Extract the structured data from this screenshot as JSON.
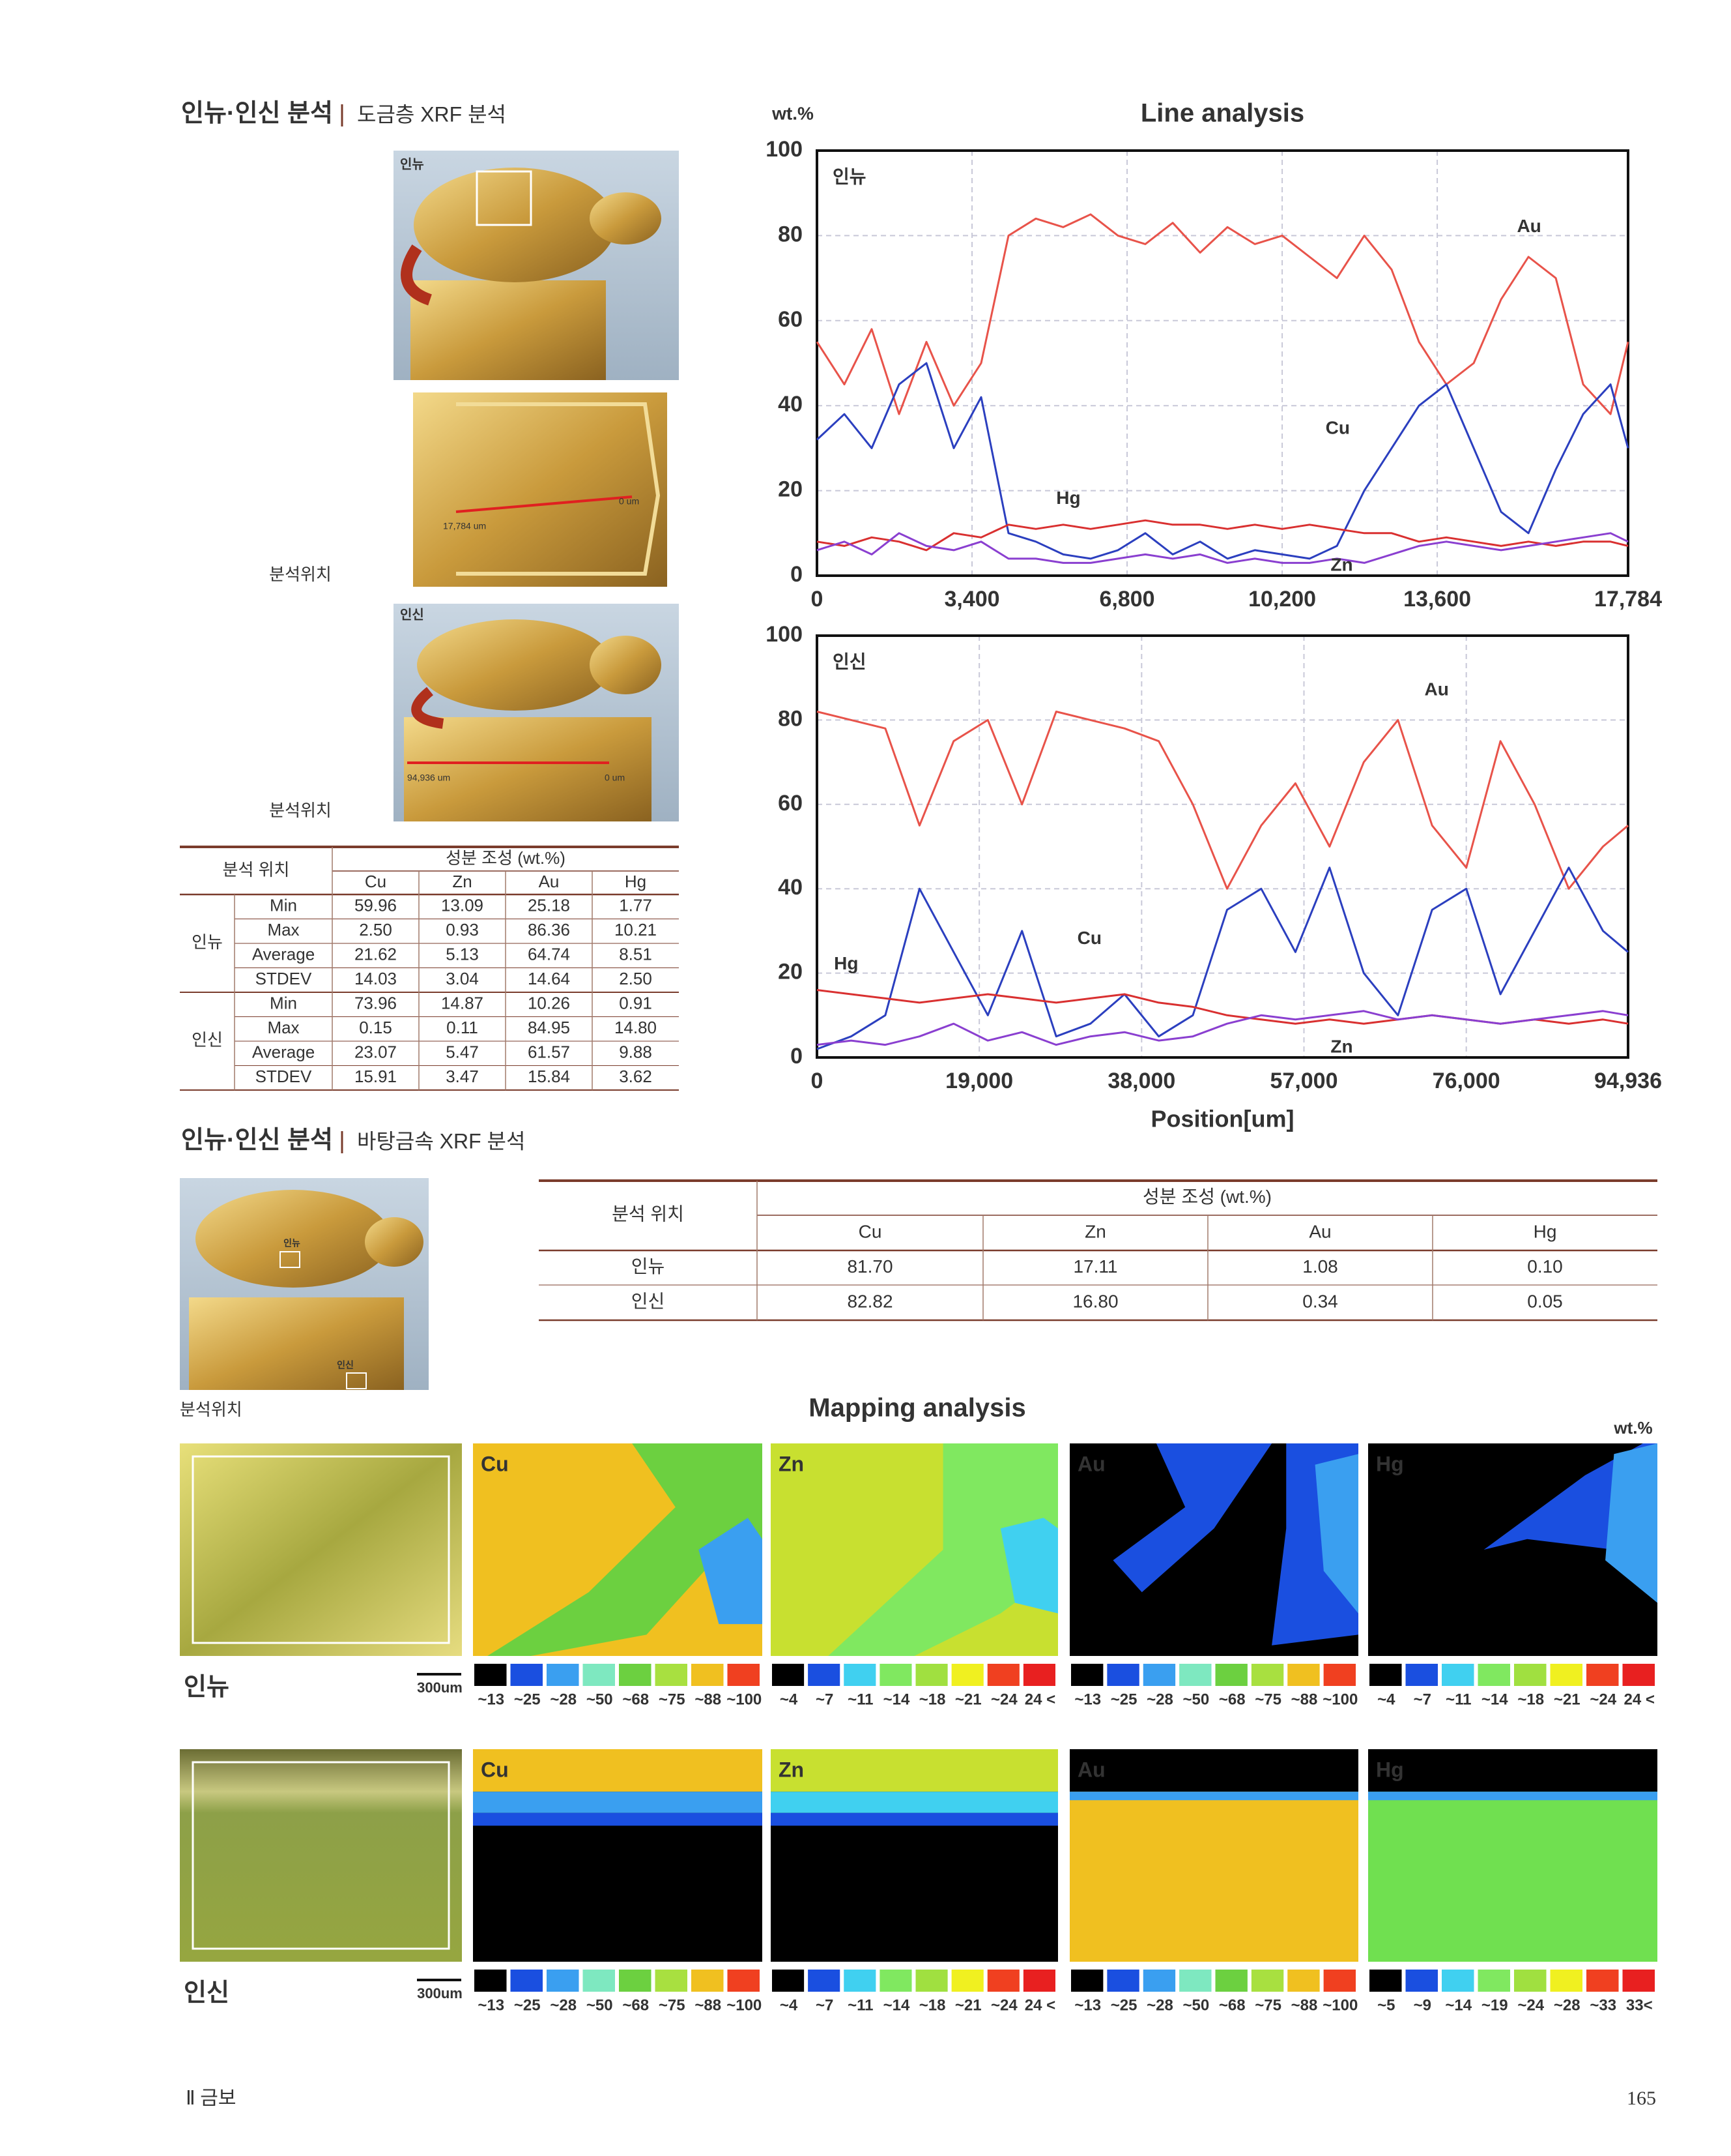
{
  "section1": {
    "title": "인뉴·인신 분석",
    "subtitle": "도금층 XRF 분석"
  },
  "photos": {
    "top": "인뉴",
    "top_detail_start": "17,784 um",
    "top_detail_end": "0 um",
    "bottom": "인신",
    "bottom_start": "94,936 um",
    "bottom_end": "0 um",
    "caption_1": "분석위치",
    "caption_2": "분석위치"
  },
  "table1": {
    "location_header": "분석 위치",
    "composition_header": "성분 조성 (wt.%)",
    "columns": [
      "Cu",
      "Zn",
      "Au",
      "Hg"
    ],
    "groups": [
      {
        "name": "인뉴",
        "rows": [
          [
            "Min",
            "59.96",
            "13.09",
            "25.18",
            "1.77"
          ],
          [
            "Max",
            "2.50",
            "0.93",
            "86.36",
            "10.21"
          ],
          [
            "Average",
            "21.62",
            "5.13",
            "64.74",
            "8.51"
          ],
          [
            "STDEV",
            "14.03",
            "3.04",
            "14.64",
            "2.50"
          ]
        ]
      },
      {
        "name": "인신",
        "rows": [
          [
            "Min",
            "73.96",
            "14.87",
            "10.26",
            "0.91"
          ],
          [
            "Max",
            "0.15",
            "0.11",
            "84.95",
            "14.80"
          ],
          [
            "Average",
            "23.07",
            "5.47",
            "61.57",
            "9.88"
          ],
          [
            "STDEV",
            "15.91",
            "3.47",
            "15.84",
            "3.62"
          ]
        ]
      }
    ]
  },
  "chart_data": [
    {
      "type": "line",
      "title": "Line analysis",
      "y_label": "wt.%",
      "panel_label": "인뉴",
      "x": [
        0,
        600,
        1200,
        1800,
        2400,
        3000,
        3600,
        4200,
        4800,
        5400,
        6000,
        6600,
        7200,
        7800,
        8400,
        9000,
        9600,
        10200,
        10800,
        11400,
        12000,
        12600,
        13200,
        13800,
        14400,
        15000,
        15600,
        16200,
        16800,
        17400,
        17784
      ],
      "xlim": [
        0,
        17784
      ],
      "xticks": [
        0,
        {
          "value": 3400,
          "label": "3,400"
        },
        {
          "value": 6800,
          "label": "6,800"
        },
        {
          "value": 10200,
          "label": "10,200"
        },
        {
          "value": 13600,
          "label": "13,600"
        },
        {
          "value": 17784,
          "label": "17,784"
        }
      ],
      "ylim": [
        0,
        100
      ],
      "yticks": [
        0,
        20,
        40,
        60,
        80,
        100
      ],
      "grid": true,
      "series": [
        {
          "name": "Au",
          "color": "#e8534a",
          "values": [
            55,
            45,
            58,
            38,
            55,
            40,
            50,
            80,
            84,
            82,
            85,
            80,
            78,
            83,
            76,
            82,
            78,
            80,
            75,
            70,
            80,
            72,
            55,
            45,
            50,
            65,
            75,
            70,
            45,
            38,
            55
          ]
        },
        {
          "name": "Cu",
          "color": "#2b3fbf",
          "values": [
            32,
            38,
            30,
            45,
            50,
            30,
            42,
            10,
            8,
            5,
            4,
            6,
            10,
            5,
            8,
            4,
            6,
            5,
            4,
            7,
            20,
            30,
            40,
            45,
            30,
            15,
            10,
            25,
            38,
            45,
            30
          ]
        },
        {
          "name": "Hg",
          "color": "#d93030",
          "values": [
            8,
            7,
            9,
            8,
            6,
            10,
            9,
            12,
            11,
            12,
            11,
            12,
            13,
            12,
            12,
            11,
            12,
            11,
            12,
            11,
            10,
            10,
            8,
            9,
            8,
            7,
            8,
            7,
            8,
            8,
            7
          ]
        },
        {
          "name": "Zn",
          "color": "#8a3fd0",
          "values": [
            6,
            8,
            5,
            10,
            7,
            6,
            8,
            4,
            4,
            3,
            3,
            4,
            5,
            4,
            5,
            3,
            4,
            3,
            3,
            4,
            3,
            5,
            7,
            8,
            7,
            6,
            7,
            8,
            9,
            10,
            8
          ]
        }
      ]
    },
    {
      "type": "line",
      "panel_label": "인신",
      "x_label": "Position[um]",
      "x": [
        0,
        4000,
        8000,
        12000,
        16000,
        20000,
        24000,
        28000,
        32000,
        36000,
        40000,
        44000,
        48000,
        52000,
        56000,
        60000,
        64000,
        68000,
        72000,
        76000,
        80000,
        84000,
        88000,
        92000,
        94936
      ],
      "xlim": [
        0,
        94936
      ],
      "xticks": [
        0,
        {
          "value": 19000,
          "label": "19,000"
        },
        {
          "value": 38000,
          "label": "38,000"
        },
        {
          "value": 57000,
          "label": "57,000"
        },
        {
          "value": 76000,
          "label": "76,000"
        },
        {
          "value": 94936,
          "label": "94,936"
        }
      ],
      "ylim": [
        0,
        100
      ],
      "yticks": [
        0,
        20,
        40,
        60,
        80,
        100
      ],
      "grid": true,
      "series": [
        {
          "name": "Au",
          "color": "#e8534a",
          "values": [
            82,
            80,
            78,
            55,
            75,
            80,
            60,
            82,
            80,
            78,
            75,
            60,
            40,
            55,
            65,
            50,
            70,
            80,
            55,
            45,
            75,
            60,
            40,
            50,
            55
          ]
        },
        {
          "name": "Cu",
          "color": "#2b3fbf",
          "values": [
            2,
            5,
            10,
            40,
            25,
            10,
            30,
            5,
            8,
            15,
            5,
            10,
            35,
            40,
            25,
            45,
            20,
            10,
            35,
            40,
            15,
            30,
            45,
            30,
            25
          ]
        },
        {
          "name": "Hg",
          "color": "#d93030",
          "values": [
            16,
            15,
            14,
            13,
            14,
            15,
            14,
            13,
            14,
            15,
            13,
            12,
            10,
            9,
            8,
            9,
            8,
            9,
            10,
            9,
            8,
            9,
            8,
            9,
            8
          ]
        },
        {
          "name": "Zn",
          "color": "#8a3fd0",
          "values": [
            3,
            4,
            3,
            5,
            8,
            4,
            6,
            3,
            5,
            6,
            4,
            5,
            8,
            10,
            9,
            10,
            11,
            9,
            10,
            9,
            8,
            9,
            10,
            11,
            10
          ]
        }
      ]
    }
  ],
  "section2": {
    "title": "인뉴·인신 분석",
    "subtitle": "바탕금속 XRF 분석",
    "photo_top": "인뉴",
    "photo_bottom": "인신",
    "caption": "분석위치"
  },
  "table2": {
    "location_header": "분석 위치",
    "composition_header": "성분 조성 (wt.%)",
    "columns": [
      "Cu",
      "Zn",
      "Au",
      "Hg"
    ],
    "rows": [
      [
        "인뉴",
        "81.70",
        "17.11",
        "1.08",
        "0.10"
      ],
      [
        "인신",
        "82.82",
        "16.80",
        "0.34",
        "0.05"
      ]
    ]
  },
  "mapping": {
    "title": "Mapping analysis",
    "unit": "wt.%",
    "rows": [
      {
        "name": "인뉴",
        "scale": "300um",
        "maps": [
          {
            "element": "Cu",
            "legend": [
              "~13",
              "~25",
              "~28",
              "~50",
              "~68",
              "~75",
              "~88",
              "~100"
            ]
          },
          {
            "element": "Zn",
            "legend": [
              "~4",
              "~7",
              "~11",
              "~14",
              "~18",
              "~21",
              "~24",
              "24 <"
            ]
          },
          {
            "element": "Au",
            "legend": [
              "~13",
              "~25",
              "~28",
              "~50",
              "~68",
              "~75",
              "~88",
              "~100"
            ]
          },
          {
            "element": "Hg",
            "legend": [
              "~4",
              "~7",
              "~11",
              "~14",
              "~18",
              "~21",
              "~24",
              "24 <"
            ]
          }
        ]
      },
      {
        "name": "인신",
        "scale": "300um",
        "maps": [
          {
            "element": "Cu",
            "legend": [
              "~13",
              "~25",
              "~28",
              "~50",
              "~68",
              "~75",
              "~88",
              "~100"
            ]
          },
          {
            "element": "Zn",
            "legend": [
              "~4",
              "~7",
              "~11",
              "~14",
              "~18",
              "~21",
              "~24",
              "24 <"
            ]
          },
          {
            "element": "Au",
            "legend": [
              "~13",
              "~25",
              "~28",
              "~50",
              "~68",
              "~75",
              "~88",
              "~100"
            ]
          },
          {
            "element": "Hg",
            "legend": [
              "~5",
              "~9",
              "~14",
              "~19",
              "~24",
              "~28",
              "~33",
              "33<"
            ]
          }
        ]
      }
    ]
  },
  "footer": {
    "section": "Ⅱ 금보",
    "page": "165"
  }
}
